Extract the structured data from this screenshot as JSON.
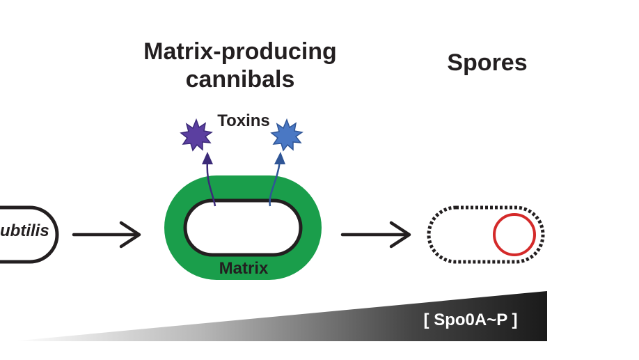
{
  "titles": {
    "matrix_producing": "Matrix-producing cannibals",
    "spores": "Spores"
  },
  "labels": {
    "toxins": "Toxins",
    "matrix": "Matrix",
    "subtilis": "ubtilis",
    "spo0a": "[ Spo0A~P ]"
  },
  "colors": {
    "matrix_green": "#1a9e4b",
    "toxin_left": "#5b3fa0",
    "toxin_right": "#4a78c4",
    "spore_ring": "#d42a2a",
    "outline": "#231f20"
  },
  "icons": {
    "arrow": "right-arrow-icon",
    "toxin": "star-burst-icon"
  }
}
